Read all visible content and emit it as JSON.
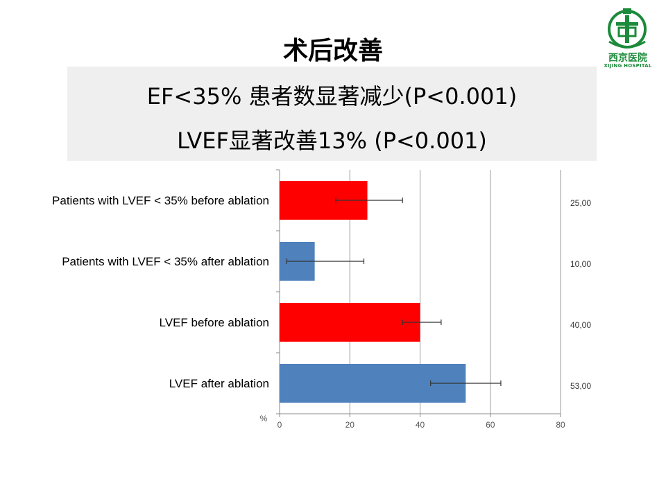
{
  "slide": {
    "title": "术后改善",
    "summary_line1": "EF<35% 患者数显著减少(P<0.001)",
    "summary_line2": "LVEF显著改善13% (P<0.001)"
  },
  "logo": {
    "name_cn": "西京医院",
    "name_en": "XIJING HOSPITAL"
  },
  "chart_data": {
    "type": "bar",
    "orientation": "horizontal",
    "categories": [
      "Patients with LVEF < 35% before ablation",
      "Patients with LVEF < 35% after ablation",
      "LVEF before ablation",
      "LVEF after ablation"
    ],
    "values": [
      25,
      10,
      40,
      53
    ],
    "error_low": [
      16,
      2,
      35,
      43
    ],
    "error_high": [
      35,
      24,
      46,
      63
    ],
    "value_labels": [
      "25,00",
      "10,00",
      "40,00",
      "53,00"
    ],
    "bar_colors": [
      "#ff0000",
      "#4f81bd",
      "#ff0000",
      "#4f81bd"
    ],
    "xlim": [
      0,
      80
    ],
    "x_ticks": [
      0,
      20,
      40,
      60,
      80
    ],
    "x_tick_labels": [
      "0",
      "20",
      "40",
      "60",
      "80"
    ],
    "xlabel": "%",
    "grid": true
  }
}
